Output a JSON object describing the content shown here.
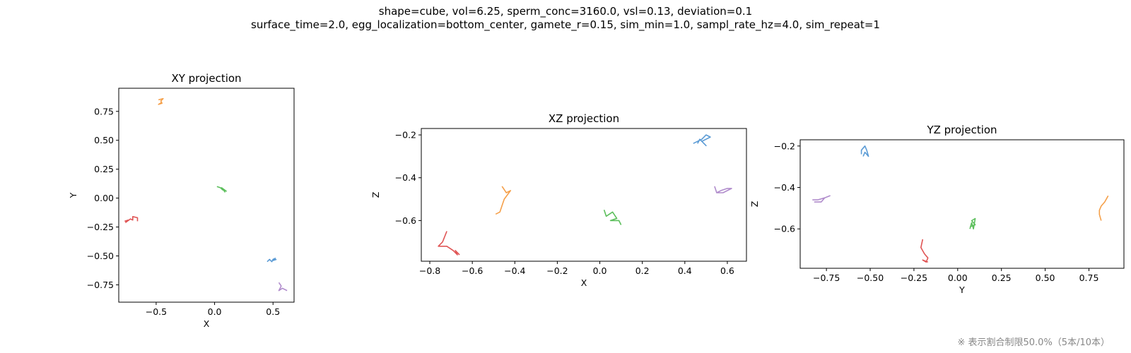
{
  "figure": {
    "suptitle_line1": "shape=cube, vol=6.25, sperm_conc=3160.0, vsl=0.13, deviation=0.1",
    "suptitle_line2": "surface_time=2.0, egg_localization=bottom_center, gamete_r=0.15, sim_min=1.0, sampl_rate_hz=4.0, sim_repeat=1",
    "footnote": "※ 表示割合制限50.0%（5本/10本）"
  },
  "colors": {
    "blue": "#5b9bd5",
    "orange": "#f5a04a",
    "green": "#5cbf5c",
    "red": "#e05555",
    "purple": "#b08ccc",
    "axes": "#000000"
  },
  "chart_data": [
    {
      "type": "line",
      "title": "XY projection",
      "xlabel": "X",
      "ylabel": "Y",
      "xlim": [
        -0.82,
        0.68
      ],
      "ylim": [
        -0.9,
        0.95
      ],
      "xticks": [
        -0.5,
        0.0,
        0.5
      ],
      "xtick_labels": [
        "−0.5",
        "0.0",
        "0.5"
      ],
      "yticks": [
        0.75,
        0.5,
        0.25,
        0.0,
        -0.25,
        -0.5,
        -0.75
      ],
      "ytick_labels": [
        "0.75",
        "0.50",
        "0.25",
        "0.00",
        "−0.25",
        "−0.50",
        "−0.75"
      ],
      "grid": false,
      "series": [
        {
          "color": "blue",
          "points": [
            [
              0.45,
              -0.55
            ],
            [
              0.47,
              -0.53
            ],
            [
              0.49,
              -0.55
            ],
            [
              0.5,
              -0.53
            ],
            [
              0.52,
              -0.52
            ],
            [
              0.5,
              -0.54
            ],
            [
              0.53,
              -0.53
            ]
          ]
        },
        {
          "color": "orange",
          "points": [
            [
              -0.48,
              0.85
            ],
            [
              -0.44,
              0.86
            ],
            [
              -0.46,
              0.84
            ],
            [
              -0.45,
              0.82
            ],
            [
              -0.48,
              0.81
            ],
            [
              -0.45,
              0.83
            ]
          ]
        },
        {
          "color": "green",
          "points": [
            [
              0.02,
              0.1
            ],
            [
              0.05,
              0.09
            ],
            [
              0.07,
              0.07
            ],
            [
              0.06,
              0.09
            ],
            [
              0.1,
              0.06
            ],
            [
              0.07,
              0.08
            ],
            [
              0.09,
              0.05
            ]
          ]
        },
        {
          "color": "red",
          "points": [
            [
              -0.77,
              -0.2
            ],
            [
              -0.74,
              -0.19
            ],
            [
              -0.76,
              -0.21
            ],
            [
              -0.72,
              -0.18
            ],
            [
              -0.7,
              -0.19
            ],
            [
              -0.7,
              -0.16
            ],
            [
              -0.66,
              -0.17
            ],
            [
              -0.66,
              -0.2
            ]
          ]
        },
        {
          "color": "purple",
          "points": [
            [
              0.55,
              -0.73
            ],
            [
              0.57,
              -0.76
            ],
            [
              0.56,
              -0.78
            ],
            [
              0.55,
              -0.8
            ],
            [
              0.58,
              -0.78
            ],
            [
              0.62,
              -0.8
            ]
          ]
        }
      ]
    },
    {
      "type": "line",
      "title": "XZ projection",
      "xlabel": "X",
      "ylabel": "Z",
      "xlim": [
        -0.84,
        0.69
      ],
      "ylim": [
        -0.79,
        -0.17
      ],
      "xticks": [
        -0.8,
        -0.6,
        -0.4,
        -0.2,
        0.0,
        0.2,
        0.4,
        0.6
      ],
      "xtick_labels": [
        "−0.8",
        "−0.6",
        "−0.4",
        "−0.2",
        "0.0",
        "0.2",
        "0.4",
        "0.6"
      ],
      "yticks": [
        -0.2,
        -0.4,
        -0.6
      ],
      "ytick_labels": [
        "−0.2",
        "−0.4",
        "−0.6"
      ],
      "grid": false,
      "series": [
        {
          "color": "blue",
          "points": [
            [
              0.44,
              -0.24
            ],
            [
              0.48,
              -0.22
            ],
            [
              0.5,
              -0.2
            ],
            [
              0.52,
              -0.21
            ],
            [
              0.48,
              -0.23
            ],
            [
              0.5,
              -0.25
            ],
            [
              0.47,
              -0.22
            ],
            [
              0.46,
              -0.24
            ]
          ]
        },
        {
          "color": "orange",
          "points": [
            [
              -0.46,
              -0.44
            ],
            [
              -0.44,
              -0.47
            ],
            [
              -0.42,
              -0.46
            ],
            [
              -0.45,
              -0.5
            ],
            [
              -0.46,
              -0.53
            ],
            [
              -0.47,
              -0.56
            ],
            [
              -0.49,
              -0.57
            ]
          ]
        },
        {
          "color": "green",
          "points": [
            [
              0.02,
              -0.55
            ],
            [
              0.03,
              -0.58
            ],
            [
              0.06,
              -0.56
            ],
            [
              0.08,
              -0.59
            ],
            [
              0.05,
              -0.6
            ],
            [
              0.09,
              -0.6
            ],
            [
              0.1,
              -0.62
            ]
          ]
        },
        {
          "color": "red",
          "points": [
            [
              -0.72,
              -0.65
            ],
            [
              -0.74,
              -0.7
            ],
            [
              -0.76,
              -0.72
            ],
            [
              -0.72,
              -0.72
            ],
            [
              -0.69,
              -0.74
            ],
            [
              -0.67,
              -0.76
            ],
            [
              -0.68,
              -0.74
            ],
            [
              -0.66,
              -0.76
            ]
          ]
        },
        {
          "color": "purple",
          "points": [
            [
              0.54,
              -0.44
            ],
            [
              0.55,
              -0.47
            ],
            [
              0.57,
              -0.46
            ],
            [
              0.6,
              -0.45
            ],
            [
              0.62,
              -0.45
            ],
            [
              0.58,
              -0.47
            ],
            [
              0.55,
              -0.47
            ]
          ]
        }
      ]
    },
    {
      "type": "line",
      "title": "YZ projection",
      "xlabel": "Y",
      "ylabel": "Z",
      "xlim": [
        -0.9,
        0.95
      ],
      "ylim": [
        -0.79,
        -0.17
      ],
      "xticks": [
        -0.75,
        -0.5,
        -0.25,
        0.0,
        0.25,
        0.5,
        0.75
      ],
      "xtick_labels": [
        "−0.75",
        "−0.50",
        "−0.25",
        "0.00",
        "0.25",
        "0.50",
        "0.75"
      ],
      "yticks": [
        -0.2,
        -0.4,
        -0.6
      ],
      "ytick_labels": [
        "−0.2",
        "−0.4",
        "−0.6"
      ],
      "grid": false,
      "series": [
        {
          "color": "blue",
          "points": [
            [
              -0.55,
              -0.24
            ],
            [
              -0.55,
              -0.22
            ],
            [
              -0.53,
              -0.2
            ],
            [
              -0.52,
              -0.22
            ],
            [
              -0.51,
              -0.25
            ],
            [
              -0.53,
              -0.23
            ],
            [
              -0.54,
              -0.25
            ]
          ]
        },
        {
          "color": "orange",
          "points": [
            [
              0.86,
              -0.44
            ],
            [
              0.84,
              -0.47
            ],
            [
              0.82,
              -0.49
            ],
            [
              0.81,
              -0.51
            ],
            [
              0.81,
              -0.53
            ],
            [
              0.82,
              -0.56
            ]
          ]
        },
        {
          "color": "green",
          "points": [
            [
              0.07,
              -0.6
            ],
            [
              0.08,
              -0.57
            ],
            [
              0.09,
              -0.6
            ],
            [
              0.1,
              -0.55
            ],
            [
              0.08,
              -0.56
            ],
            [
              0.1,
              -0.58
            ],
            [
              0.07,
              -0.59
            ]
          ]
        },
        {
          "color": "red",
          "points": [
            [
              -0.2,
              -0.65
            ],
            [
              -0.21,
              -0.69
            ],
            [
              -0.19,
              -0.72
            ],
            [
              -0.17,
              -0.74
            ],
            [
              -0.18,
              -0.76
            ],
            [
              -0.2,
              -0.75
            ],
            [
              -0.17,
              -0.76
            ]
          ]
        },
        {
          "color": "purple",
          "points": [
            [
              -0.82,
              -0.47
            ],
            [
              -0.78,
              -0.47
            ],
            [
              -0.76,
              -0.45
            ],
            [
              -0.73,
              -0.44
            ],
            [
              -0.76,
              -0.45
            ],
            [
              -0.8,
              -0.46
            ],
            [
              -0.83,
              -0.46
            ]
          ]
        }
      ]
    }
  ]
}
